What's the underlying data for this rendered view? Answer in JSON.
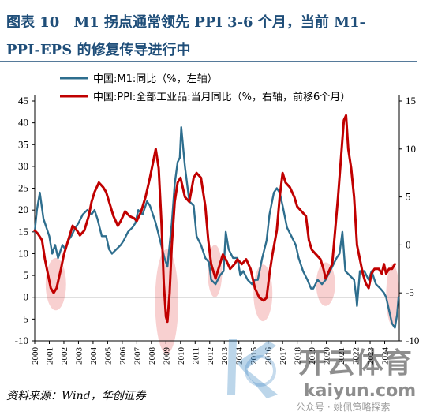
{
  "figure": {
    "title_line1": "图表 10　M1 拐点通常领先 PPI 3-6 个月，当前 M1-",
    "title_line2": "PPI-EPS 的修复传导进行中",
    "source": "资料来源：Wind，华创证券",
    "title_color": "#1f4e79",
    "watermark": {
      "brand_cn": "开云体育",
      "brand_url": "kaiyun.com",
      "tag": "公众号 · 姚佩策略探索"
    }
  },
  "chart_data": {
    "type": "line",
    "xlim": [
      2000,
      2025
    ],
    "xticks": [
      "2000",
      "2001",
      "2002",
      "2003",
      "2004",
      "2005",
      "2006",
      "2007",
      "2008",
      "2009",
      "2010",
      "2011",
      "2012",
      "2013",
      "2014",
      "2015",
      "2016",
      "2017",
      "2018",
      "2019",
      "2020",
      "2021",
      "2022",
      "2023",
      "2024"
    ],
    "y_left": {
      "lim": [
        -10,
        45
      ],
      "ticks": [
        -10,
        -5,
        0,
        5,
        10,
        15,
        20,
        25,
        30,
        35,
        40,
        45
      ]
    },
    "y_right": {
      "lim": [
        -10,
        15
      ],
      "ticks": [
        -10,
        -5,
        0,
        5,
        10,
        15
      ]
    },
    "grid": false,
    "legend_position": "top-left",
    "series": [
      {
        "name": "中国:M1:同比（%，左轴）",
        "axis": "left",
        "color": "#2e6e8e",
        "points": [
          [
            2000.0,
            15
          ],
          [
            2000.15,
            20
          ],
          [
            2000.35,
            24
          ],
          [
            2000.6,
            18
          ],
          [
            2000.8,
            16
          ],
          [
            2001.0,
            14
          ],
          [
            2001.2,
            10
          ],
          [
            2001.4,
            12
          ],
          [
            2001.6,
            9
          ],
          [
            2001.9,
            12
          ],
          [
            2002.1,
            11
          ],
          [
            2002.3,
            13
          ],
          [
            2002.5,
            14
          ],
          [
            2002.8,
            16
          ],
          [
            2003.0,
            17
          ],
          [
            2003.3,
            19
          ],
          [
            2003.6,
            20
          ],
          [
            2003.9,
            19
          ],
          [
            2004.1,
            20
          ],
          [
            2004.3,
            18
          ],
          [
            2004.6,
            14
          ],
          [
            2004.9,
            14
          ],
          [
            2005.1,
            11
          ],
          [
            2005.3,
            10
          ],
          [
            2005.6,
            11
          ],
          [
            2005.9,
            12
          ],
          [
            2006.1,
            13
          ],
          [
            2006.4,
            15
          ],
          [
            2006.7,
            16
          ],
          [
            2006.9,
            17
          ],
          [
            2007.1,
            20
          ],
          [
            2007.4,
            19
          ],
          [
            2007.7,
            22
          ],
          [
            2007.9,
            21
          ],
          [
            2008.1,
            19
          ],
          [
            2008.3,
            17
          ],
          [
            2008.6,
            13
          ],
          [
            2008.9,
            9
          ],
          [
            2009.1,
            7
          ],
          [
            2009.4,
            17
          ],
          [
            2009.6,
            26
          ],
          [
            2009.8,
            31
          ],
          [
            2009.95,
            32
          ],
          [
            2010.05,
            39
          ],
          [
            2010.3,
            30
          ],
          [
            2010.6,
            22
          ],
          [
            2010.9,
            21
          ],
          [
            2011.1,
            14
          ],
          [
            2011.4,
            12
          ],
          [
            2011.7,
            9
          ],
          [
            2011.95,
            8
          ],
          [
            2012.1,
            4
          ],
          [
            2012.4,
            3
          ],
          [
            2012.7,
            5
          ],
          [
            2012.95,
            6
          ],
          [
            2013.1,
            15
          ],
          [
            2013.3,
            11
          ],
          [
            2013.6,
            9
          ],
          [
            2013.9,
            9
          ],
          [
            2014.1,
            5
          ],
          [
            2014.3,
            6
          ],
          [
            2014.6,
            4
          ],
          [
            2014.9,
            3
          ],
          [
            2015.1,
            4
          ],
          [
            2015.3,
            4
          ],
          [
            2015.6,
            9
          ],
          [
            2015.9,
            13
          ],
          [
            2016.1,
            19
          ],
          [
            2016.4,
            24
          ],
          [
            2016.6,
            25
          ],
          [
            2016.8,
            24
          ],
          [
            2017.0,
            21
          ],
          [
            2017.3,
            16
          ],
          [
            2017.6,
            14
          ],
          [
            2017.9,
            12
          ],
          [
            2018.1,
            9
          ],
          [
            2018.4,
            6
          ],
          [
            2018.7,
            4
          ],
          [
            2018.95,
            2
          ],
          [
            2019.1,
            2
          ],
          [
            2019.4,
            4
          ],
          [
            2019.7,
            3
          ],
          [
            2019.95,
            4
          ],
          [
            2020.1,
            5
          ],
          [
            2020.4,
            7
          ],
          [
            2020.7,
            9
          ],
          [
            2020.9,
            10
          ],
          [
            2021.1,
            15
          ],
          [
            2021.3,
            6
          ],
          [
            2021.6,
            5
          ],
          [
            2021.9,
            4
          ],
          [
            2022.05,
            0
          ],
          [
            2022.1,
            -2
          ],
          [
            2022.3,
            6
          ],
          [
            2022.6,
            6
          ],
          [
            2022.9,
            4
          ],
          [
            2023.1,
            6
          ],
          [
            2023.4,
            3
          ],
          [
            2023.7,
            2
          ],
          [
            2023.95,
            1
          ],
          [
            2024.1,
            0
          ],
          [
            2024.3,
            -3
          ],
          [
            2024.5,
            -6
          ],
          [
            2024.7,
            -7
          ],
          [
            2024.85,
            -4
          ],
          [
            2024.95,
            0
          ]
        ]
      },
      {
        "name": "中国:PPI:全部工业品:当月同比（%，右轴，前移6个月）",
        "axis": "right",
        "color": "#c00000",
        "points": [
          [
            2000.0,
            1.5
          ],
          [
            2000.2,
            1.2
          ],
          [
            2000.5,
            0.5
          ],
          [
            2000.7,
            -1.5
          ],
          [
            2000.9,
            -3.0
          ],
          [
            2001.1,
            -4.5
          ],
          [
            2001.3,
            -5.0
          ],
          [
            2001.5,
            -4.5
          ],
          [
            2001.8,
            -2.5
          ],
          [
            2002.0,
            -1.0
          ],
          [
            2002.3,
            0.5
          ],
          [
            2002.6,
            2.0
          ],
          [
            2002.9,
            1.5
          ],
          [
            2003.1,
            1.0
          ],
          [
            2003.4,
            1.5
          ],
          [
            2003.7,
            3.0
          ],
          [
            2003.9,
            4.5
          ],
          [
            2004.1,
            5.5
          ],
          [
            2004.4,
            6.5
          ],
          [
            2004.7,
            6.0
          ],
          [
            2004.9,
            5.5
          ],
          [
            2005.1,
            4.5
          ],
          [
            2005.4,
            3.0
          ],
          [
            2005.7,
            2.0
          ],
          [
            2005.9,
            2.5
          ],
          [
            2006.2,
            3.5
          ],
          [
            2006.5,
            3.0
          ],
          [
            2006.8,
            2.8
          ],
          [
            2007.0,
            2.5
          ],
          [
            2007.3,
            3.5
          ],
          [
            2007.6,
            5.0
          ],
          [
            2007.9,
            7.0
          ],
          [
            2008.1,
            8.5
          ],
          [
            2008.3,
            10.0
          ],
          [
            2008.5,
            8.0
          ],
          [
            2008.7,
            2.0
          ],
          [
            2008.85,
            -4.0
          ],
          [
            2009.0,
            -7.5
          ],
          [
            2009.1,
            -8.0
          ],
          [
            2009.25,
            -5.0
          ],
          [
            2009.4,
            0.0
          ],
          [
            2009.6,
            4.5
          ],
          [
            2009.8,
            6.5
          ],
          [
            2010.0,
            7.0
          ],
          [
            2010.3,
            5.0
          ],
          [
            2010.6,
            4.5
          ],
          [
            2010.9,
            7.0
          ],
          [
            2011.1,
            7.5
          ],
          [
            2011.4,
            7.0
          ],
          [
            2011.7,
            4.0
          ],
          [
            2011.9,
            0.5
          ],
          [
            2012.1,
            -2.0
          ],
          [
            2012.4,
            -3.5
          ],
          [
            2012.7,
            -2.0
          ],
          [
            2012.9,
            -1.0
          ],
          [
            2013.1,
            -1.5
          ],
          [
            2013.4,
            -2.5
          ],
          [
            2013.7,
            -2.0
          ],
          [
            2013.9,
            -1.5
          ],
          [
            2014.2,
            -2.0
          ],
          [
            2014.5,
            -1.5
          ],
          [
            2014.8,
            -2.5
          ],
          [
            2015.1,
            -4.5
          ],
          [
            2015.4,
            -5.5
          ],
          [
            2015.7,
            -5.8
          ],
          [
            2015.9,
            -5.5
          ],
          [
            2016.1,
            -3.0
          ],
          [
            2016.3,
            -1.0
          ],
          [
            2016.6,
            1.5
          ],
          [
            2016.8,
            5.0
          ],
          [
            2017.0,
            7.5
          ],
          [
            2017.2,
            6.5
          ],
          [
            2017.5,
            6.0
          ],
          [
            2017.8,
            5.0
          ],
          [
            2018.0,
            4.0
          ],
          [
            2018.3,
            3.5
          ],
          [
            2018.6,
            3.0
          ],
          [
            2018.8,
            0.5
          ],
          [
            2019.0,
            -0.5
          ],
          [
            2019.3,
            -1.0
          ],
          [
            2019.6,
            -1.5
          ],
          [
            2019.8,
            -2.5
          ],
          [
            2019.95,
            -3.5
          ],
          [
            2020.1,
            -3.0
          ],
          [
            2020.4,
            -2.0
          ],
          [
            2020.6,
            1.5
          ],
          [
            2020.8,
            5.0
          ],
          [
            2021.0,
            9.0
          ],
          [
            2021.2,
            13.0
          ],
          [
            2021.35,
            13.5
          ],
          [
            2021.5,
            10.0
          ],
          [
            2021.7,
            8.0
          ],
          [
            2021.9,
            5.0
          ],
          [
            2022.1,
            0.0
          ],
          [
            2022.3,
            -1.5
          ],
          [
            2022.5,
            -3.0
          ],
          [
            2022.7,
            -4.0
          ],
          [
            2022.9,
            -4.5
          ],
          [
            2023.1,
            -3.0
          ],
          [
            2023.3,
            -2.5
          ],
          [
            2023.6,
            -2.5
          ],
          [
            2023.8,
            -3.0
          ],
          [
            2023.95,
            -2.0
          ],
          [
            2024.1,
            -3.0
          ],
          [
            2024.3,
            -2.5
          ],
          [
            2024.5,
            -2.5
          ],
          [
            2024.7,
            -2.0
          ]
        ]
      }
    ],
    "highlight_regions": [
      {
        "xc": 2001.45,
        "yc": 3,
        "w": 1.4,
        "h": 12
      },
      {
        "xc": 2009.05,
        "yc": -1,
        "w": 1.6,
        "h": 24
      },
      {
        "xc": 2012.35,
        "yc": 6,
        "w": 1.0,
        "h": 12
      },
      {
        "xc": 2015.65,
        "yc": 1,
        "w": 1.3,
        "h": 13
      },
      {
        "xc": 2019.95,
        "yc": 3,
        "w": 1.3,
        "h": 10
      },
      {
        "xc": 2024.55,
        "yc": 0.5,
        "w": 0.9,
        "h": 14
      }
    ]
  }
}
